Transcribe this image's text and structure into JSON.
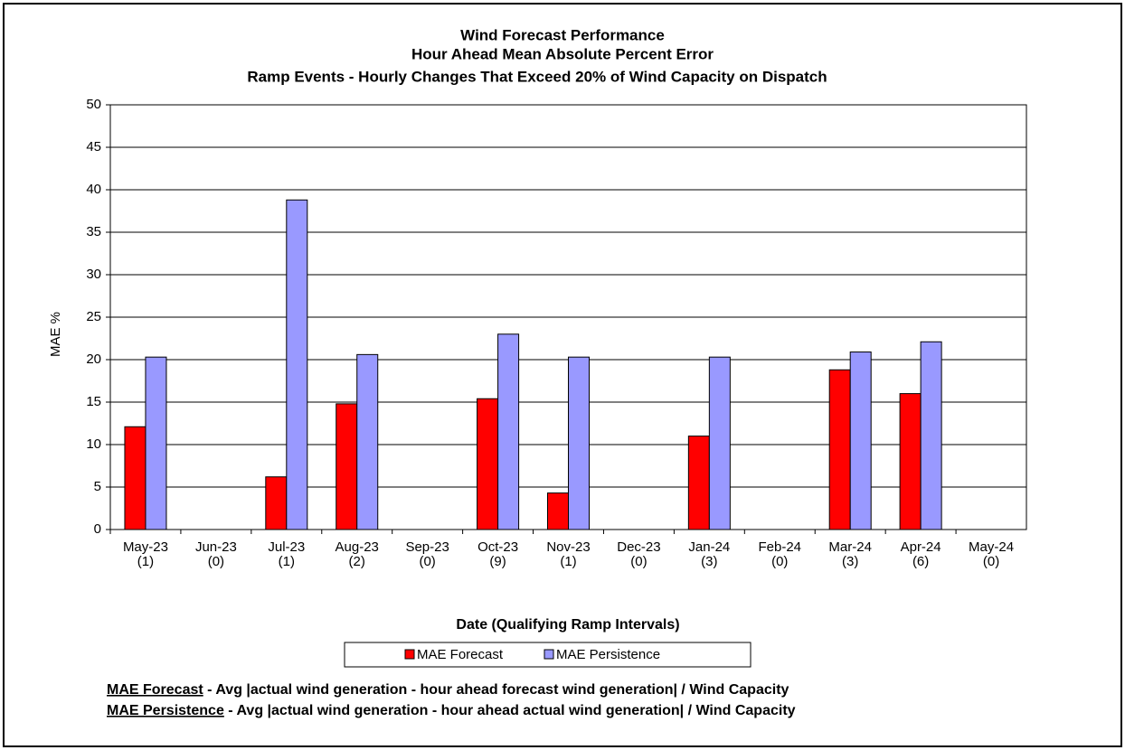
{
  "chart_data": {
    "type": "bar",
    "title": [
      "Wind Forecast Performance",
      "Hour Ahead Mean Absolute Percent Error",
      "Ramp Events - Hourly Changes That Exceed 20% of Wind Capacity on Dispatch"
    ],
    "y_label": "MAE %",
    "x_label": "Date (Qualifying Ramp Intervals)",
    "categories": [
      [
        "May-23",
        "(1)"
      ],
      [
        "Jun-23",
        "(0)"
      ],
      [
        "Jul-23",
        "(1)"
      ],
      [
        "Aug-23",
        "(2)"
      ],
      [
        "Sep-23",
        "(0)"
      ],
      [
        "Oct-23",
        "(9)"
      ],
      [
        "Nov-23",
        "(1)"
      ],
      [
        "Dec-23",
        "(0)"
      ],
      [
        "Jan-24",
        "(3)"
      ],
      [
        "Feb-24",
        "(0)"
      ],
      [
        "Mar-24",
        "(3)"
      ],
      [
        "Apr-24",
        "(6)"
      ],
      [
        "May-24",
        "(0)"
      ]
    ],
    "series": [
      {
        "name": "MAE Forecast",
        "color": "#ff0000",
        "values": [
          12.1,
          null,
          6.2,
          14.8,
          null,
          15.4,
          4.3,
          null,
          11.0,
          null,
          18.8,
          16.0,
          null
        ]
      },
      {
        "name": "MAE Persistence",
        "color": "#9999ff",
        "values": [
          20.3,
          null,
          38.8,
          20.6,
          null,
          23.0,
          20.3,
          null,
          20.3,
          null,
          20.9,
          22.1,
          null
        ]
      }
    ],
    "ylim": [
      0,
      50
    ],
    "yticks": [
      0,
      5,
      10,
      15,
      20,
      25,
      30,
      35,
      40,
      45,
      50
    ],
    "grid": true,
    "legend": "bottom",
    "footnotes": [
      {
        "term": "MAE Forecast",
        "text": " - Avg |actual wind generation - hour ahead forecast wind generation| / Wind Capacity"
      },
      {
        "term": "MAE Persistence",
        "text": " - Avg |actual wind generation - hour ahead actual wind generation| / Wind Capacity"
      }
    ]
  }
}
